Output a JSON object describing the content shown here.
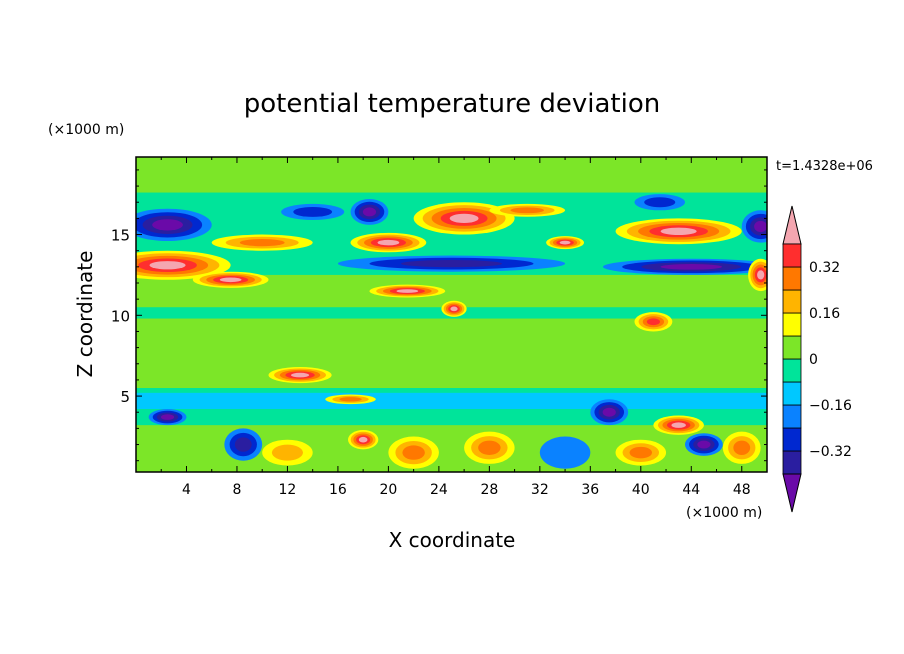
{
  "chart_data": {
    "type": "heatmap",
    "title": "potential temperature deviation",
    "xlabel": "X coordinate",
    "ylabel": "Z coordinate",
    "x_unit": "(×1000 m)",
    "y_unit": "(×1000 m)",
    "time_label": "t=1.4328e+06",
    "xlim": [
      0,
      50
    ],
    "ylim": [
      0.3,
      19.8
    ],
    "x_ticks": [
      4,
      8,
      12,
      16,
      20,
      24,
      28,
      32,
      36,
      40,
      44,
      48
    ],
    "y_ticks": [
      5,
      10,
      15
    ],
    "colorbar": {
      "levels": [
        -0.48,
        -0.4,
        -0.32,
        -0.24,
        -0.16,
        -0.08,
        0,
        0.08,
        0.16,
        0.24,
        0.32,
        0.4,
        0.48
      ],
      "tick_labels": [
        {
          "value": 0.32,
          "label": "0.32"
        },
        {
          "value": 0.16,
          "label": "0.16"
        },
        {
          "value": 0,
          "label": "0"
        },
        {
          "value": -0.16,
          "label": "−0.16"
        },
        {
          "value": -0.32,
          "label": "−0.32"
        }
      ],
      "colors": [
        "#6a0aa8",
        "#2a1ea0",
        "#0028d0",
        "#0a82ff",
        "#00c8ff",
        "#00e49a",
        "#7ce628",
        "#ffff00",
        "#ffb400",
        "#ff7800",
        "#ff2e2e",
        "#f4a6b0"
      ],
      "extend": "both"
    },
    "background_level": "#00e49a",
    "features": [
      {
        "type": "band",
        "x": [
          0,
          50
        ],
        "z": [
          17.6,
          19.8
        ],
        "value": 0.05
      },
      {
        "type": "band",
        "x": [
          0,
          50
        ],
        "z": [
          10.5,
          12.5
        ],
        "value": 0.02
      },
      {
        "type": "band",
        "x": [
          0,
          50
        ],
        "z": [
          5.5,
          9.8
        ],
        "value": 0.03
      },
      {
        "type": "band",
        "x": [
          0,
          50
        ],
        "z": [
          4.2,
          5.2
        ],
        "value": -0.1
      },
      {
        "type": "band",
        "x": [
          0,
          50
        ],
        "z": [
          0.3,
          3.2
        ],
        "value": 0.04
      },
      {
        "type": "blob",
        "x": 2.5,
        "z": 15.6,
        "rx": 3.5,
        "rz": 1.0,
        "value": -0.42
      },
      {
        "type": "blob",
        "x": 2.5,
        "z": 13.1,
        "rx": 5.0,
        "rz": 0.9,
        "value": 0.45
      },
      {
        "type": "blob",
        "x": 7.5,
        "z": 12.2,
        "rx": 3.0,
        "rz": 0.5,
        "value": 0.45
      },
      {
        "type": "blob",
        "x": 10,
        "z": 14.5,
        "rx": 4.0,
        "rz": 0.5,
        "value": 0.3
      },
      {
        "type": "blob",
        "x": 14,
        "z": 16.4,
        "rx": 2.5,
        "rz": 0.5,
        "value": -0.3
      },
      {
        "type": "blob",
        "x": 18.5,
        "z": 16.4,
        "rx": 1.5,
        "rz": 0.8,
        "value": -0.42
      },
      {
        "type": "blob",
        "x": 20,
        "z": 14.5,
        "rx": 3.0,
        "rz": 0.6,
        "value": 0.45
      },
      {
        "type": "blob",
        "x": 26,
        "z": 16.0,
        "rx": 4.0,
        "rz": 1.0,
        "value": 0.45
      },
      {
        "type": "blob",
        "x": 25,
        "z": 13.2,
        "rx": 9.0,
        "rz": 0.5,
        "value": -0.35
      },
      {
        "type": "blob",
        "x": 21.5,
        "z": 11.5,
        "rx": 3.0,
        "rz": 0.4,
        "value": 0.45
      },
      {
        "type": "blob",
        "x": 25.2,
        "z": 10.4,
        "rx": 1.0,
        "rz": 0.5,
        "value": 0.4
      },
      {
        "type": "blob",
        "x": 31,
        "z": 16.5,
        "rx": 3.0,
        "rz": 0.4,
        "value": 0.25
      },
      {
        "type": "blob",
        "x": 34,
        "z": 14.5,
        "rx": 1.5,
        "rz": 0.4,
        "value": 0.4
      },
      {
        "type": "blob",
        "x": 43,
        "z": 15.2,
        "rx": 5.0,
        "rz": 0.8,
        "value": 0.45
      },
      {
        "type": "blob",
        "x": 44,
        "z": 13.0,
        "rx": 7.0,
        "rz": 0.5,
        "value": -0.42
      },
      {
        "type": "blob",
        "x": 41.5,
        "z": 17.0,
        "rx": 2.0,
        "rz": 0.5,
        "value": -0.3
      },
      {
        "type": "blob",
        "x": 49.5,
        "z": 15.5,
        "rx": 1.5,
        "rz": 1.0,
        "value": -0.42
      },
      {
        "type": "blob",
        "x": 49.5,
        "z": 12.5,
        "rx": 1.0,
        "rz": 1.0,
        "value": 0.4
      },
      {
        "type": "blob",
        "x": 41,
        "z": 9.6,
        "rx": 1.5,
        "rz": 0.6,
        "value": 0.35
      },
      {
        "type": "blob",
        "x": 13,
        "z": 6.3,
        "rx": 2.5,
        "rz": 0.5,
        "value": 0.4
      },
      {
        "type": "blob",
        "x": 17,
        "z": 4.8,
        "rx": 2.0,
        "rz": 0.3,
        "value": 0.3
      },
      {
        "type": "blob",
        "x": 2.5,
        "z": 3.7,
        "rx": 1.5,
        "rz": 0.5,
        "value": -0.42
      },
      {
        "type": "blob",
        "x": 37.5,
        "z": 4.0,
        "rx": 1.5,
        "rz": 0.8,
        "value": -0.42
      },
      {
        "type": "blob",
        "x": 43,
        "z": 3.2,
        "rx": 2.0,
        "rz": 0.6,
        "value": 0.45
      },
      {
        "type": "blob",
        "x": 45,
        "z": 2.0,
        "rx": 1.5,
        "rz": 0.7,
        "value": -0.42
      },
      {
        "type": "blob",
        "x": 18,
        "z": 2.3,
        "rx": 1.2,
        "rz": 0.6,
        "value": 0.45
      },
      {
        "type": "blob",
        "x": 8.5,
        "z": 2.0,
        "rx": 1.5,
        "rz": 1.0,
        "value": -0.35
      },
      {
        "type": "blob",
        "x": 22,
        "z": 1.5,
        "rx": 2.0,
        "rz": 1.0,
        "value": 0.3
      },
      {
        "type": "blob",
        "x": 28,
        "z": 1.8,
        "rx": 2.0,
        "rz": 1.0,
        "value": 0.28
      },
      {
        "type": "blob",
        "x": 34,
        "z": 1.5,
        "rx": 2.0,
        "rz": 1.0,
        "value": -0.2
      },
      {
        "type": "blob",
        "x": 40,
        "z": 1.5,
        "rx": 2.0,
        "rz": 0.8,
        "value": 0.28
      },
      {
        "type": "blob",
        "x": 48,
        "z": 1.8,
        "rx": 1.5,
        "rz": 1.0,
        "value": 0.25
      },
      {
        "type": "blob",
        "x": 12,
        "z": 1.5,
        "rx": 2.0,
        "rz": 0.8,
        "value": 0.2
      }
    ]
  }
}
